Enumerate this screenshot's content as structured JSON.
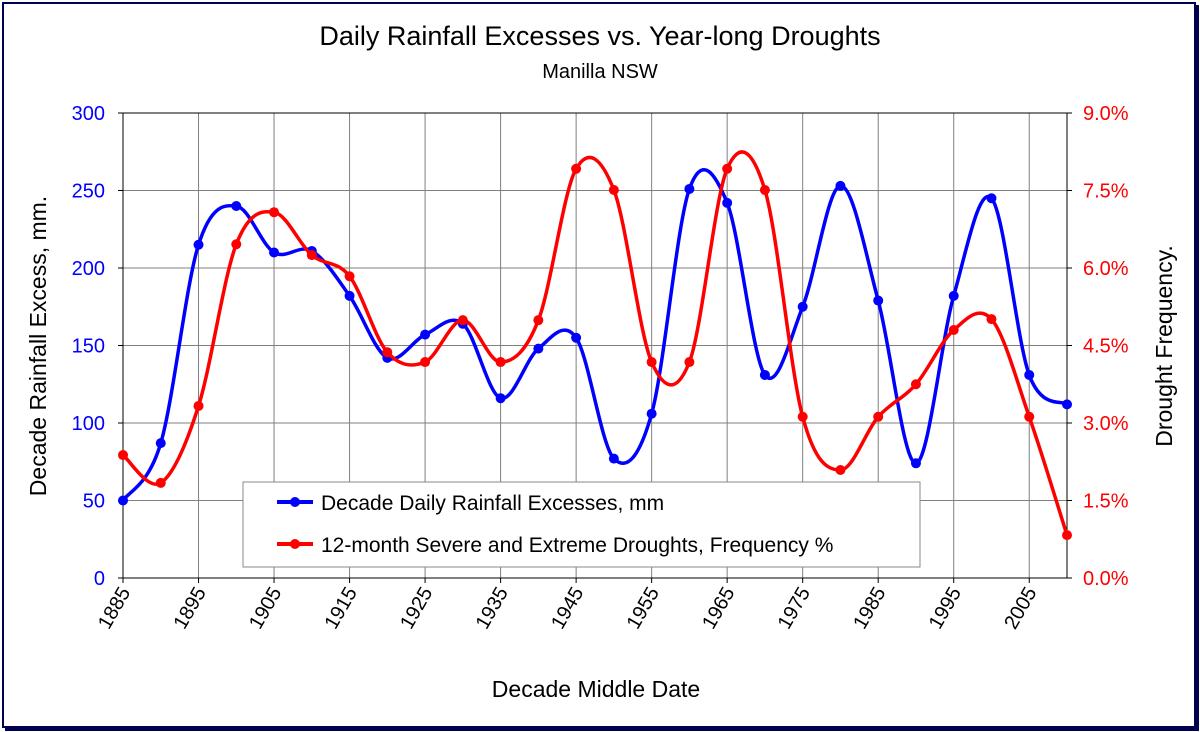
{
  "chart_data": {
    "type": "line",
    "title": "Daily Rainfall Excesses vs. Year-long Droughts",
    "subtitle": "Manilla NSW",
    "xlabel": "Decade Middle Date",
    "ylabel_left": "Decade Rainfall Excess, mm.",
    "ylabel_right": "Drought Frequency.",
    "xlim": [
      1885,
      2010
    ],
    "ylim_left": [
      0,
      300
    ],
    "ylim_right": [
      0,
      9
    ],
    "x_ticks": [
      "1885",
      "1895",
      "1905",
      "1915",
      "1925",
      "1935",
      "1945",
      "1955",
      "1965",
      "1975",
      "1985",
      "1995",
      "2005"
    ],
    "y_left_ticks": [
      "0",
      "50",
      "100",
      "150",
      "200",
      "250",
      "300"
    ],
    "y_right_ticks": [
      "0.0%",
      "1.5%",
      "3.0%",
      "4.5%",
      "6.0%",
      "7.5%",
      "9.0%"
    ],
    "grid": true,
    "legend_position": "bottom-center",
    "x": [
      1885,
      1890,
      1895,
      1900,
      1905,
      1910,
      1915,
      1920,
      1925,
      1930,
      1935,
      1940,
      1945,
      1950,
      1955,
      1960,
      1965,
      1970,
      1975,
      1980,
      1985,
      1990,
      1995,
      2000,
      2005,
      2010
    ],
    "series": [
      {
        "name": "Decade Daily Rainfall Excesses, mm",
        "axis": "left",
        "color": "#0000ff",
        "values": [
          50,
          87,
          215,
          240,
          210,
          211,
          182,
          142,
          157,
          164,
          116,
          148,
          155,
          77,
          106,
          251,
          242,
          131,
          175,
          253,
          179,
          74,
          182,
          245,
          131,
          112
        ]
      },
      {
        "name": "12-month Severe and Extreme Droughts, Frequency %",
        "axis": "right",
        "color": "#ff0000",
        "values": [
          2.38,
          1.84,
          3.33,
          6.46,
          7.08,
          6.25,
          5.84,
          4.37,
          4.18,
          4.99,
          4.18,
          4.99,
          7.92,
          7.51,
          4.18,
          4.18,
          7.92,
          7.51,
          3.12,
          2.09,
          3.12,
          3.75,
          4.8,
          5.01,
          3.12,
          0.83
        ]
      }
    ],
    "colors": {
      "left_axis": "#0000ff",
      "right_axis": "#ff0000",
      "frame": "#000050"
    }
  }
}
